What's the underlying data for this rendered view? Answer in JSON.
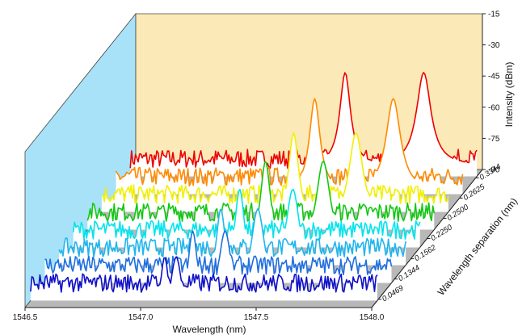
{
  "chart_data": {
    "type": "line",
    "title": "",
    "xlabel": "Wavelength (nm)",
    "ylabel": "Intensity (dBm)",
    "zlabel": "Wavelength separation (nm)",
    "xlim": [
      1546.5,
      1548.0
    ],
    "ylim": [
      -90,
      -15
    ],
    "x_ticks": [
      "1546.5",
      "1547.0",
      "1547.5",
      "1548.0"
    ],
    "y_ticks": [
      "-15",
      "-30",
      "-45",
      "-60",
      "-75",
      "-90"
    ],
    "z_ticks": [
      "0.0469",
      "0.1344",
      "0.1562",
      "0.2250",
      "0.2500",
      "0.2625",
      "0.3344"
    ],
    "grid": false,
    "colors": {
      "back_wall": "#fbe9b7",
      "side_wall": "#a8e2f8",
      "floor": "#b8b8b8"
    },
    "series": [
      {
        "separation": "0.0469",
        "color": "#1010c8",
        "peaks": [
          1547.08,
          1547.13
        ],
        "peak_level": -72,
        "noise_floor": -86
      },
      {
        "separation": "0.1344",
        "color": "#1f6fe0",
        "peaks": [
          1547.14,
          1547.28
        ],
        "peak_level": -68,
        "noise_floor": -86
      },
      {
        "separation": "0.1562",
        "color": "#1fb6ee",
        "peaks": [
          1547.2,
          1547.36
        ],
        "peak_level": -66,
        "noise_floor": -86
      },
      {
        "separation": "0.2250",
        "color": "#00e4ee",
        "peaks": [
          1547.22,
          1547.45
        ],
        "peak_level": -65,
        "noise_floor": -86
      },
      {
        "separation": "0.2500",
        "color": "#12c812",
        "peaks": [
          1547.27,
          1547.52
        ],
        "peak_level": -60,
        "noise_floor": -86
      },
      {
        "separation": "0.2625",
        "color": "#f0f000",
        "peaks": [
          1547.33,
          1547.6
        ],
        "peak_level": -55,
        "noise_floor": -86
      },
      {
        "separation": "0.3344",
        "color": "#ff8a00",
        "peaks": [
          1547.36,
          1547.7
        ],
        "peak_level": -47,
        "noise_floor": -86
      },
      {
        "separation": "0.3344",
        "color": "#ee0000",
        "peaks": [
          1547.43,
          1547.77
        ],
        "peak_level": -43,
        "noise_floor": -86
      }
    ]
  }
}
